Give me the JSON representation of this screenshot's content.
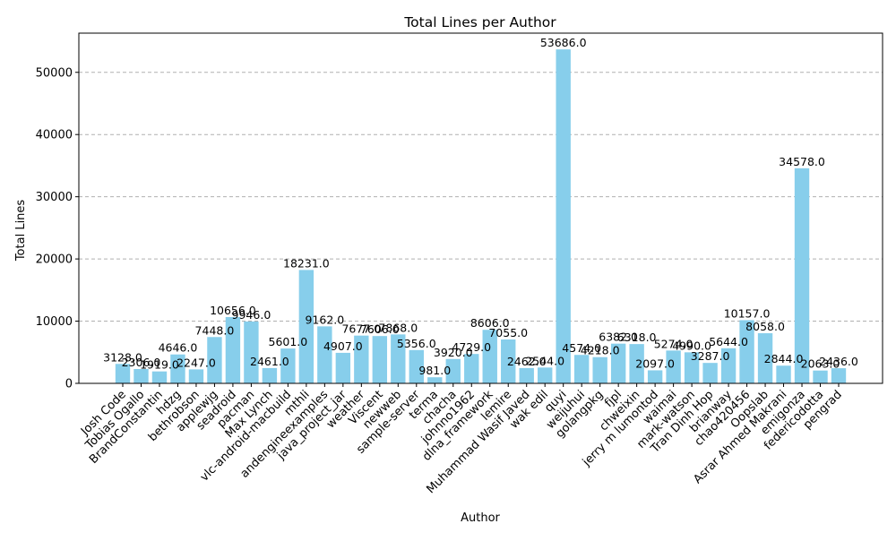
{
  "chart_data": {
    "type": "bar",
    "title": "Total Lines per Author",
    "xlabel": "Author",
    "ylabel": "Total Lines",
    "ylim": [
      0,
      56300
    ],
    "yticks": [
      0,
      10000,
      20000,
      30000,
      40000,
      50000
    ],
    "grid": "y-dashed",
    "bar_color": "#87ceeb",
    "categories": [
      "Josh Code",
      "Tobias Ogallo",
      "BrandConstantin",
      "hdzg",
      "bethrobson",
      "applewjg",
      "seadroid",
      "pacman",
      "Max Lynch",
      "vlc-android-macbuild",
      "mthli",
      "andengineexamples",
      "java_project_jar",
      "weather",
      "Viscent",
      "newweb",
      "sample-server",
      "terma",
      "chacha",
      "johnno1962",
      "dlna_framework",
      "lemire",
      "Muhammad Wasif Javed",
      "wak edil",
      "quyi",
      "weijuhui",
      "golangpkg",
      "fjpl",
      "chweixin",
      "jerry m lumontod",
      "waimai",
      "mark-watson",
      "Tran Dinh Hop",
      "brianway",
      "chao420456",
      "Oopslab",
      "Asrar Ahmed Makrani",
      "emigonza",
      "federicodotta",
      "pengrad"
    ],
    "values": [
      3128,
      2306,
      1919,
      4646,
      2247,
      7448,
      10656,
      9946,
      2461,
      5601,
      18231,
      9162,
      4907,
      7677,
      7606,
      7868,
      5356,
      981,
      3920,
      4729,
      8606,
      7055,
      2462,
      2544,
      53686,
      4574,
      4218,
      6382,
      6318,
      2097,
      5274,
      4990,
      3287,
      5644,
      10157,
      8058,
      2844,
      34578,
      2063,
      2436
    ],
    "value_labels": [
      "3128.0",
      "2306.0",
      "1919.0",
      "4646.0",
      "2247.0",
      "7448.0",
      "10656.0",
      "9946.0",
      "2461.0",
      "5601.0",
      "18231.0",
      "9162.0",
      "4907.0",
      "7677.0",
      "7606.0",
      "7868.0",
      "5356.0",
      "981.0",
      "3920.0",
      "4729.0",
      "8606.0",
      "7055.0",
      "2462.0",
      "2544.0",
      "53686.0",
      "4574.0",
      "4218.0",
      "6382.0",
      "6318.0",
      "2097.0",
      "5274.0",
      "4990.0",
      "3287.0",
      "5644.0",
      "10157.0",
      "8058.0",
      "2844.0",
      "34578.0",
      "2063.0",
      "2436.0"
    ]
  }
}
